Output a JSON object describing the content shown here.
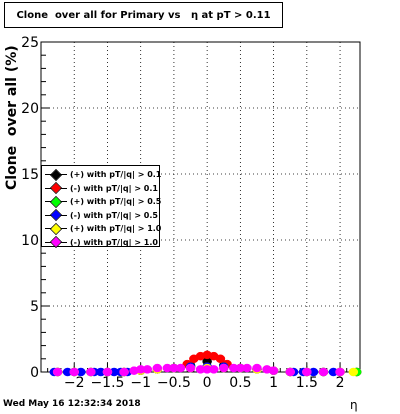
{
  "title": "Clone  over all for Primary vs   η at pT > 0.11",
  "footer": "Wed May 16 12:32:34 2018",
  "chart_data": {
    "type": "scatter",
    "title": "Clone  over all for Primary vs   η at pT > 0.11",
    "xlabel": "η",
    "ylabel": "Clone  over all (%)",
    "xlim": [
      -2.5,
      2.3
    ],
    "ylim": [
      0,
      25
    ],
    "xticks": [
      -2,
      -1.5,
      -1,
      -0.5,
      0,
      0.5,
      1,
      1.5,
      2
    ],
    "xtick_labels": [
      "−2",
      "−1.5",
      "−1",
      "−0.5",
      "0",
      "0.5",
      "1",
      "1.5",
      "2"
    ],
    "yticks": [
      0,
      5,
      10,
      15,
      20,
      25
    ],
    "ytick_labels": [
      "0",
      "5",
      "10",
      "15",
      "20",
      "25"
    ],
    "grid": true,
    "legend_position": "center-left",
    "series": [
      {
        "name": "(+) with pT/|q| > 0.1",
        "color": "#000000",
        "x": [
          -2.25,
          -2.0,
          -1.75,
          -1.5,
          -1.25,
          -1.0,
          -0.75,
          -0.5,
          -0.25,
          0.0,
          0.25,
          0.5,
          0.75,
          1.0,
          1.25,
          1.5,
          1.75,
          2.0,
          2.25
        ],
        "y": [
          0,
          0,
          0,
          0,
          0,
          0.1,
          0.2,
          0.3,
          0.5,
          0.8,
          0.5,
          0.3,
          0.2,
          0.1,
          0,
          0,
          0,
          0,
          0
        ]
      },
      {
        "name": "(-) with pT/|q| > 0.1",
        "color": "#ff0000",
        "x": [
          -2.25,
          -2.0,
          -1.75,
          -1.5,
          -1.25,
          -1.0,
          -0.75,
          -0.5,
          -0.3,
          -0.2,
          -0.1,
          0.0,
          0.1,
          0.2,
          0.3,
          0.5,
          0.75,
          1.0,
          1.25,
          1.5,
          1.75,
          2.0,
          2.25
        ],
        "y": [
          0,
          0,
          0,
          0,
          0,
          0.1,
          0.2,
          0.3,
          0.6,
          1.0,
          1.2,
          1.3,
          1.2,
          1.0,
          0.6,
          0.3,
          0.2,
          0.1,
          0,
          0,
          0,
          0,
          0
        ]
      },
      {
        "name": "(+) with pT/|q| > 0.5",
        "color": "#00ff00",
        "x": [
          -2.25,
          -2.0,
          -1.75,
          -1.5,
          -1.25,
          -1.0,
          -0.75,
          -0.5,
          -0.25,
          0.0,
          0.25,
          0.5,
          0.75,
          1.0,
          1.25,
          1.5,
          1.75,
          2.0,
          2.25
        ],
        "y": [
          0,
          0,
          0,
          0,
          0,
          0.1,
          0.2,
          0.3,
          0.4,
          0.4,
          0.4,
          0.3,
          0.2,
          0.1,
          0,
          0,
          0,
          0,
          0
        ]
      },
      {
        "name": "(-) with pT/|q| > 0.5",
        "color": "#0000ff",
        "x": [
          -2.3,
          -2.1,
          -1.9,
          -1.7,
          -1.6,
          -1.5,
          -1.4,
          -1.3,
          -1.2,
          -1.0,
          -0.75,
          -0.5,
          -0.25,
          0.0,
          0.25,
          0.5,
          0.75,
          1.0,
          1.3,
          1.45,
          1.6,
          1.75,
          1.9
        ],
        "y": [
          0,
          0,
          0,
          0,
          0,
          0,
          0,
          0,
          0,
          0.1,
          0.2,
          0.3,
          0.4,
          0.4,
          0.4,
          0.3,
          0.2,
          0.1,
          0,
          0,
          0,
          0,
          0
        ]
      },
      {
        "name": "(+) with pT/|q| > 1.0",
        "color": "#ffff00",
        "x": [
          -2.25,
          -2.0,
          -1.75,
          -1.5,
          -1.25,
          -1.0,
          -0.75,
          -0.5,
          -0.25,
          0.0,
          0.25,
          0.5,
          0.75,
          1.0,
          1.25,
          1.5,
          1.75,
          2.0,
          2.2
        ],
        "y": [
          0,
          0,
          0,
          0,
          0,
          0.1,
          0.2,
          0.3,
          0.3,
          0.3,
          0.3,
          0.3,
          0.2,
          0.1,
          0,
          0,
          0,
          0,
          0
        ]
      },
      {
        "name": "(-) with pT/|q| > 1.0",
        "color": "#ff00ff",
        "x": [
          -2.25,
          -2.0,
          -1.75,
          -1.5,
          -1.25,
          -1.1,
          -1.0,
          -0.9,
          -0.75,
          -0.6,
          -0.5,
          -0.4,
          -0.25,
          -0.1,
          0.0,
          0.1,
          0.25,
          0.4,
          0.5,
          0.6,
          0.75,
          0.9,
          1.0,
          1.25,
          1.5,
          1.75,
          2.0
        ],
        "y": [
          0,
          0,
          0,
          0,
          0,
          0.1,
          0.2,
          0.2,
          0.3,
          0.3,
          0.3,
          0.3,
          0.3,
          0.2,
          0.2,
          0.2,
          0.3,
          0.3,
          0.3,
          0.3,
          0.3,
          0.2,
          0.1,
          0,
          0,
          0,
          0
        ]
      }
    ]
  }
}
